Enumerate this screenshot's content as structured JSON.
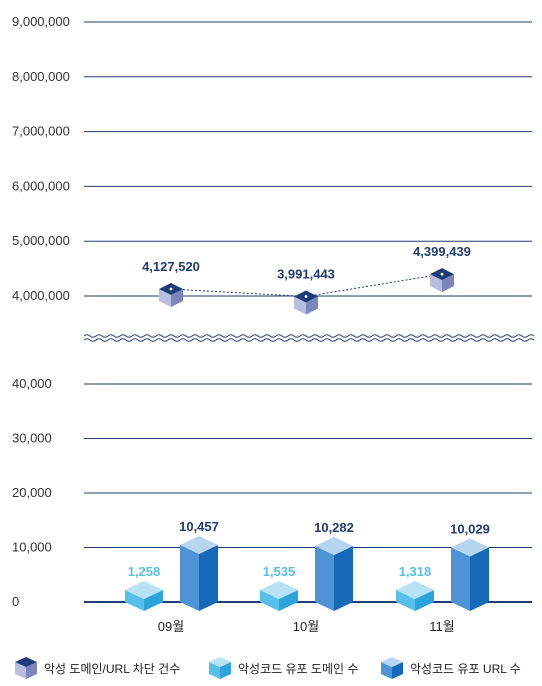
{
  "chart_data": {
    "type": "bar",
    "broken_axis": true,
    "categories": [
      "09월",
      "10월",
      "11월"
    ],
    "series": [
      {
        "name": "악성 도메인/URL 차단 건수",
        "type": "line",
        "panel": "upper",
        "values": [
          4127520,
          3991443,
          4399439
        ],
        "labels": [
          "4,127,520",
          "3,991,443",
          "4,399,439"
        ]
      },
      {
        "name": "악성코드 유포 도메인 수",
        "type": "bar",
        "panel": "lower",
        "values": [
          1258,
          1535,
          1318
        ],
        "labels": [
          "1,258",
          "1,535",
          "1,318"
        ]
      },
      {
        "name": "악성코드 유포 URL 수",
        "type": "bar",
        "panel": "lower",
        "values": [
          10457,
          10282,
          10029
        ],
        "labels": [
          "10,457",
          "10,282",
          "10,029"
        ]
      }
    ],
    "upper_axis": {
      "ylim": [
        4000000,
        9000000
      ],
      "ticks": [
        4000000,
        5000000,
        6000000,
        7000000,
        8000000,
        9000000
      ],
      "tick_labels": [
        "4,000,000",
        "5,000,000",
        "6,000,000",
        "7,000,000",
        "8,000,000",
        "9,000,000"
      ]
    },
    "lower_axis": {
      "ylim": [
        0,
        40000
      ],
      "ticks": [
        0,
        10000,
        20000,
        30000,
        40000
      ],
      "tick_labels": [
        "0",
        "10,000",
        "20,000",
        "30,000",
        "40,000"
      ]
    },
    "grid": true,
    "legend_position": "bottom",
    "colors": {
      "line_marker_top": "#1f3c7a",
      "line_marker_left": "#b8bede",
      "line_marker_right": "#7c86bd",
      "domain_bar_top": "#b6e2f4",
      "domain_bar_left": "#56c0ea",
      "domain_bar_right": "#2ba4dc",
      "url_bar_top": "#b6d5ef",
      "url_bar_left": "#4d93d6",
      "url_bar_right": "#1569b8",
      "grid": "#1f3c73",
      "value_label_dark": "#1f3c73",
      "value_label_light": "#56bfe6"
    }
  }
}
